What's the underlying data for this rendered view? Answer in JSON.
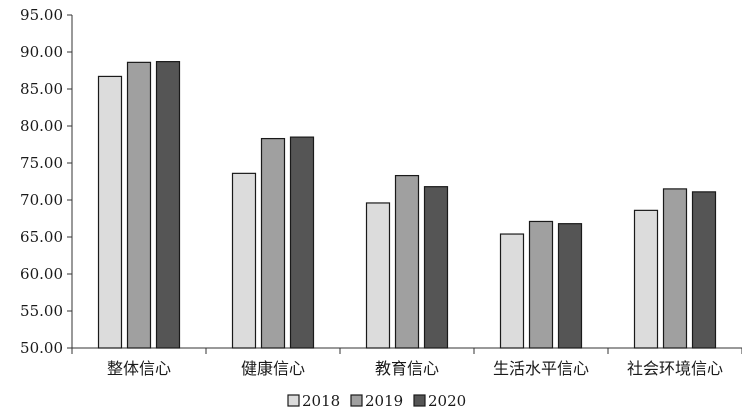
{
  "chart_data": {
    "type": "bar",
    "title": "",
    "xlabel": "",
    "ylabel": "",
    "categories": [
      "整体信心",
      "健康信心",
      "教育信心",
      "生活水平信心",
      "社会环境信心"
    ],
    "series": [
      {
        "name": "2018",
        "color": "#dcdcdc",
        "values": [
          86.7,
          73.6,
          69.6,
          65.4,
          68.6
        ]
      },
      {
        "name": "2019",
        "color": "#a0a0a0",
        "values": [
          88.6,
          78.3,
          73.3,
          67.1,
          71.5
        ]
      },
      {
        "name": "2020",
        "color": "#555555",
        "values": [
          88.7,
          78.5,
          71.8,
          66.8,
          71.1
        ]
      }
    ],
    "ylim": [
      50,
      95
    ],
    "yticks": [
      "50.00",
      "55.00",
      "60.00",
      "65.00",
      "70.00",
      "75.00",
      "80.00",
      "85.00",
      "90.00",
      "95.00"
    ],
    "grid": false,
    "legend": "bottom-center"
  }
}
